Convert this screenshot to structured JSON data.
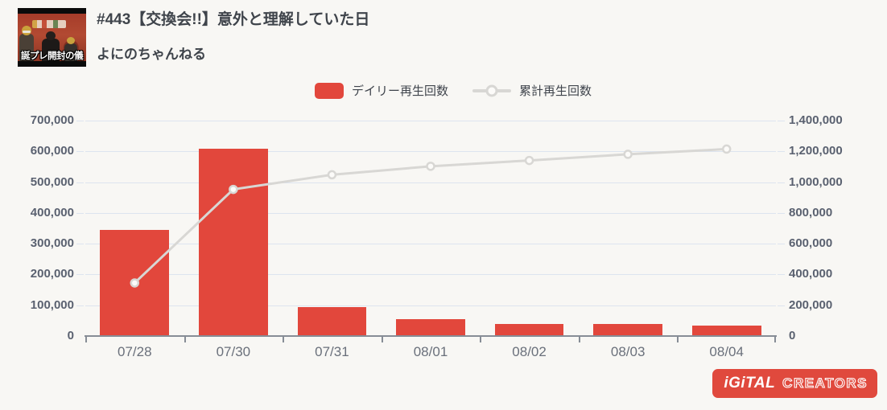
{
  "header": {
    "title": "#443【交換会!!】意外と理解していた日",
    "channel": "よにのちゃんねる",
    "thumbnail_text": "誕プレ開封の儀"
  },
  "legend": {
    "daily_label": "デイリー再生回数",
    "cumulative_label": "累計再生回数"
  },
  "chart_data": {
    "type": "bar",
    "combo": "bar+line",
    "title": "",
    "categories": [
      "07/28",
      "07/30",
      "07/31",
      "08/01",
      "08/02",
      "08/03",
      "08/04"
    ],
    "series": [
      {
        "name": "デイリー再生回数",
        "type": "bar",
        "axis": "left",
        "color": "#e2473c",
        "values": [
          345000,
          608000,
          95000,
          55000,
          38000,
          40000,
          34000
        ]
      },
      {
        "name": "累計再生回数",
        "type": "line",
        "axis": "right",
        "color": "#d8d7d4",
        "values": [
          345000,
          953000,
          1048000,
          1103000,
          1141000,
          1181000,
          1215000
        ]
      }
    ],
    "left_axis": {
      "min": 0,
      "max": 700000,
      "step": 100000,
      "tick_labels": [
        "0",
        "100,000",
        "200,000",
        "300,000",
        "400,000",
        "500,000",
        "600,000",
        "700,000"
      ]
    },
    "right_axis": {
      "min": 0,
      "max": 1400000,
      "step": 200000,
      "tick_labels": [
        "0",
        "200,000",
        "400,000",
        "600,000",
        "800,000",
        "1,000,000",
        "1,200,000",
        "1,400,000"
      ]
    },
    "grid": true,
    "legend_position": "top"
  },
  "logo": {
    "part1": "iGiTAL",
    "part2": "CREATORS"
  },
  "colors": {
    "background": "#f8f7f4",
    "bar": "#e2473c",
    "line": "#d8d7d4",
    "point_fill": "#fcfbf9",
    "grid": "#dde4ef",
    "axis": "#878d96",
    "tick_text": "#5a6170",
    "date_text": "#6a707b",
    "title_text": "#3f444b",
    "logo_bg": "#e0493d"
  }
}
